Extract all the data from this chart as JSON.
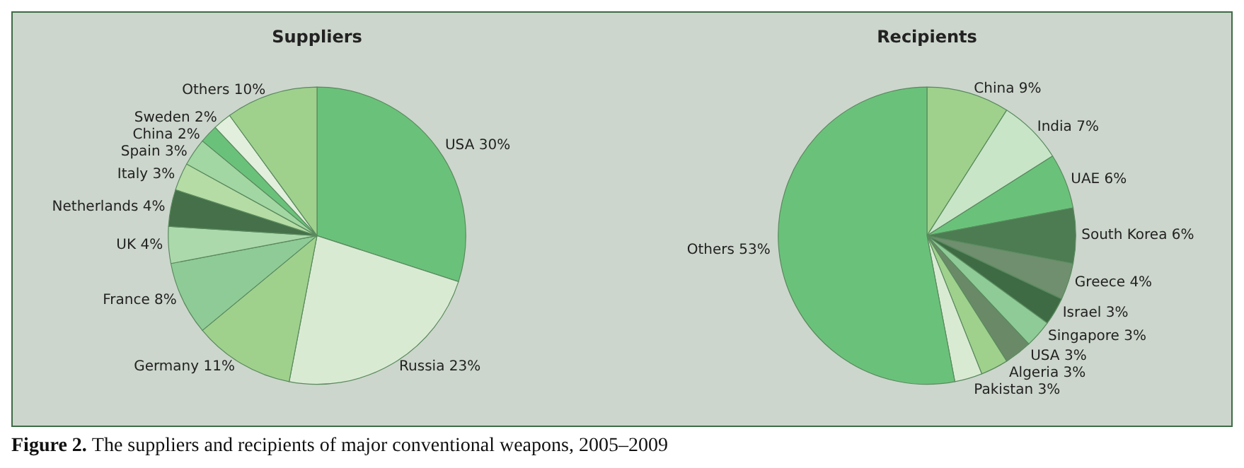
{
  "chart_data": [
    {
      "type": "pie",
      "title": "Suppliers",
      "categories": [
        "USA",
        "Russia",
        "Germany",
        "France",
        "UK",
        "Netherlands",
        "Italy",
        "Spain",
        "China",
        "Sweden",
        "Others"
      ],
      "values": [
        30,
        23,
        11,
        8,
        4,
        4,
        3,
        3,
        2,
        2,
        10
      ],
      "value_labels": [
        "30%",
        "23%",
        "11%",
        "8%",
        "4%",
        "4%",
        "3%",
        "3%",
        "2%",
        "2%",
        "10%"
      ],
      "colors": [
        "#6ac27a",
        "#d9ead3",
        "#9fd18d",
        "#8ecb96",
        "#acd9ac",
        "#457049",
        "#b5dca5",
        "#a2d6a2",
        "#6ac27a",
        "#e2efdc",
        "#9fd18d"
      ],
      "annotations": [
        "Figure 2.",
        "The suppliers and recipients of major conventional weapons, 2005–2009"
      ]
    },
    {
      "type": "pie",
      "title": "Recipients",
      "categories": [
        "China",
        "India",
        "UAE",
        "South Korea",
        "Greece",
        "Israel",
        "Singapore",
        "USA",
        "Algeria",
        "Pakistan",
        "Others"
      ],
      "values": [
        9,
        7,
        6,
        6,
        4,
        3,
        3,
        3,
        3,
        3,
        53
      ],
      "value_labels": [
        "9%",
        "7%",
        "6%",
        "6%",
        "4%",
        "3%",
        "3%",
        "3%",
        "3%",
        "3%",
        "53%"
      ],
      "colors": [
        "#9fd18d",
        "#c8e5c8",
        "#6ac27a",
        "#4d7b52",
        "#6f8f6e",
        "#3e6b44",
        "#8ecb96",
        "#6a8a67",
        "#9fd18d",
        "#d9ead3",
        "#6ac27a"
      ]
    }
  ]
}
